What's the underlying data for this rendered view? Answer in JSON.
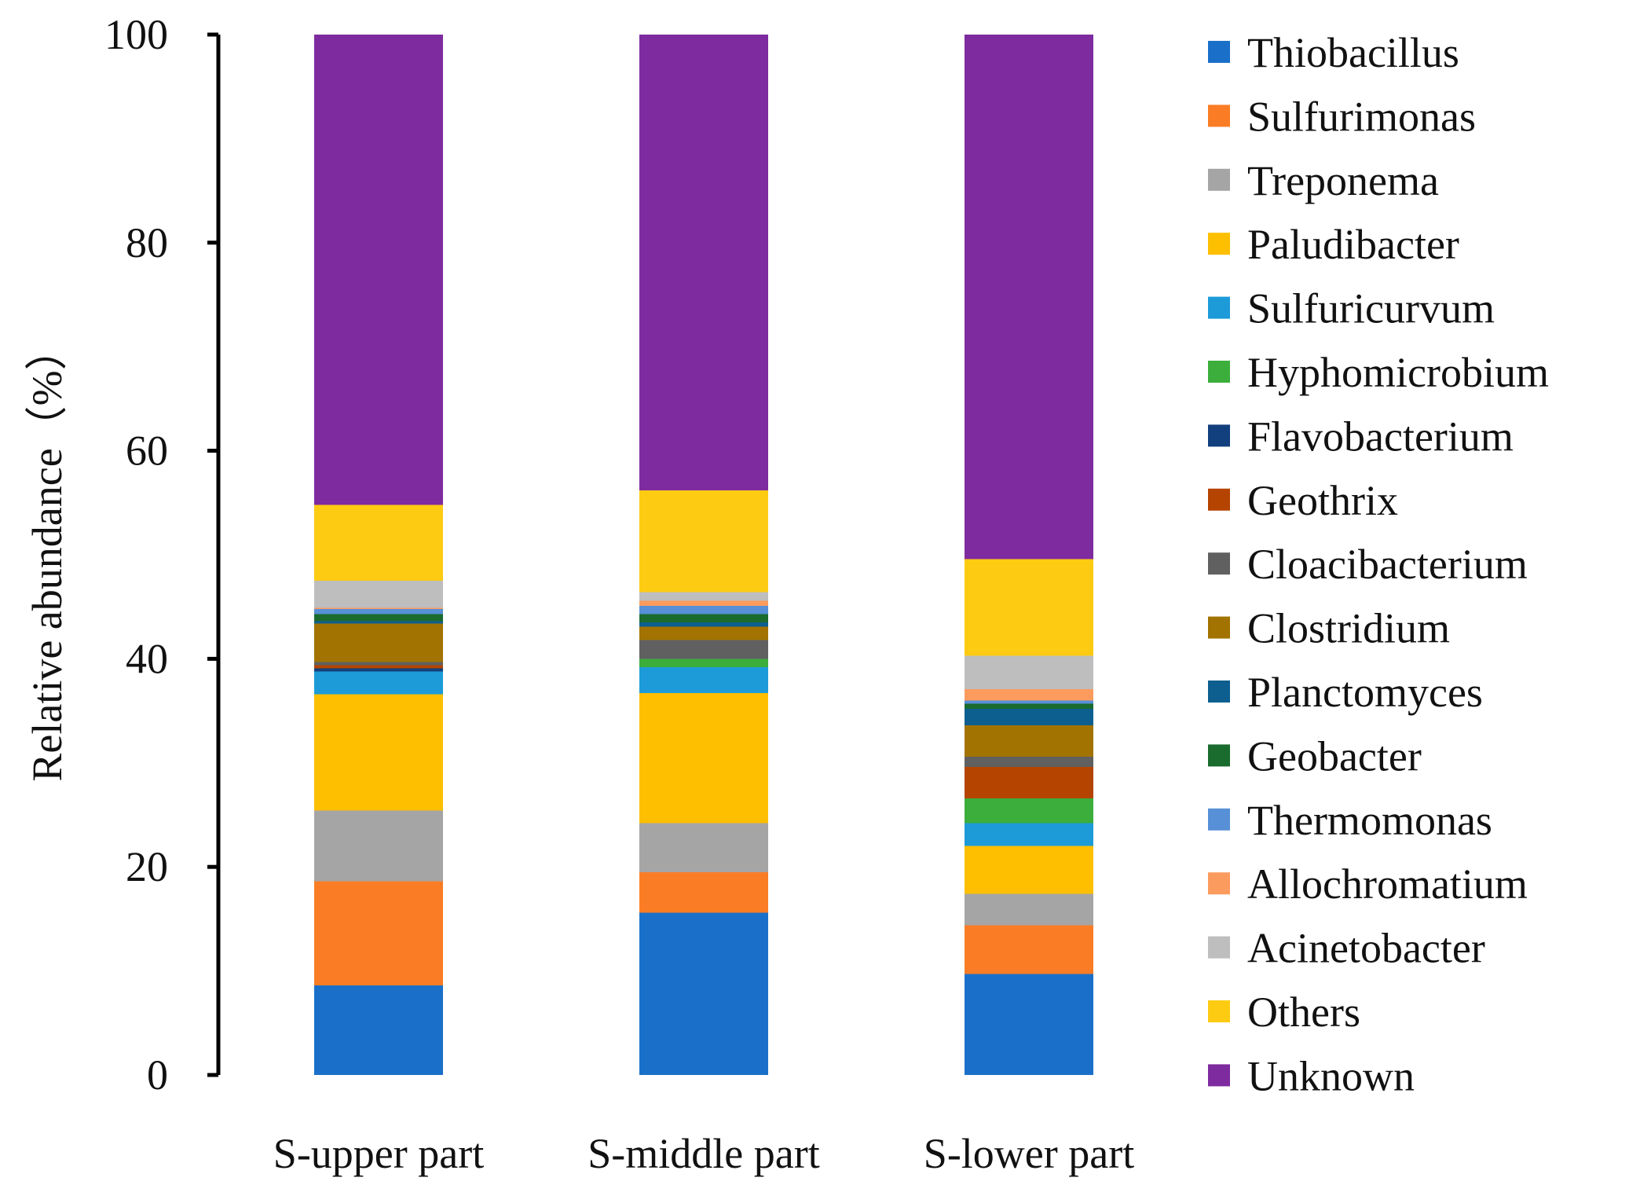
{
  "chart_data": {
    "type": "bar",
    "stacked": true,
    "title": "",
    "xlabel": "",
    "ylabel": "Relative abundance（%）",
    "ylim": [
      0,
      100
    ],
    "yticks": [
      0,
      20,
      40,
      60,
      80,
      100
    ],
    "ytick_labels": [
      "0",
      "20",
      "40",
      "60",
      "80",
      "100"
    ],
    "categories": [
      "S-upper part",
      "S-middle part",
      "S-lower part"
    ],
    "legend_position": "right",
    "series": [
      {
        "name": "Thiobacillus",
        "color": "#1a70c9",
        "values": [
          8.6,
          15.6,
          9.7
        ]
      },
      {
        "name": "Sulfurimonas",
        "color": "#fa7d25",
        "values": [
          10.0,
          3.9,
          4.7
        ]
      },
      {
        "name": "Treponema",
        "color": "#a5a5a5",
        "values": [
          6.8,
          4.7,
          3.0
        ]
      },
      {
        "name": "Paludibacter",
        "color": "#fdbf00",
        "values": [
          11.2,
          12.5,
          4.6
        ]
      },
      {
        "name": "Sulfuricurvum",
        "color": "#1c9bd8",
        "values": [
          2.2,
          2.5,
          2.2
        ]
      },
      {
        "name": "Hyphomicrobium",
        "color": "#3cae3c",
        "values": [
          0.0,
          0.8,
          2.4
        ]
      },
      {
        "name": "Flavobacterium",
        "color": "#123f7d",
        "values": [
          0.3,
          0.0,
          0.0
        ]
      },
      {
        "name": "Geothrix",
        "color": "#b54400",
        "values": [
          0.3,
          0.0,
          3.0
        ]
      },
      {
        "name": "Cloacibacterium",
        "color": "#606060",
        "values": [
          0.3,
          1.8,
          1.0
        ]
      },
      {
        "name": "Clostridium",
        "color": "#a27300",
        "values": [
          3.7,
          1.3,
          3.0
        ]
      },
      {
        "name": "Planctomyces",
        "color": "#0d5f8f",
        "values": [
          0.2,
          0.4,
          1.6
        ]
      },
      {
        "name": "Geobacter",
        "color": "#1a6b2e",
        "values": [
          0.7,
          0.8,
          0.5
        ]
      },
      {
        "name": "Thermomonas",
        "color": "#5790d6",
        "values": [
          0.5,
          0.8,
          0.3
        ]
      },
      {
        "name": "Allochromatium",
        "color": "#fc9b5e",
        "values": [
          0.1,
          0.5,
          1.1
        ]
      },
      {
        "name": "Acinetobacter",
        "color": "#bebebe",
        "values": [
          2.6,
          0.8,
          3.2
        ]
      },
      {
        "name": "Others",
        "color": "#fecb13",
        "values": [
          7.3,
          9.8,
          9.3
        ]
      },
      {
        "name": "Unknown",
        "color": "#7e2ba0",
        "values": [
          45.2,
          43.8,
          50.4
        ]
      }
    ]
  }
}
